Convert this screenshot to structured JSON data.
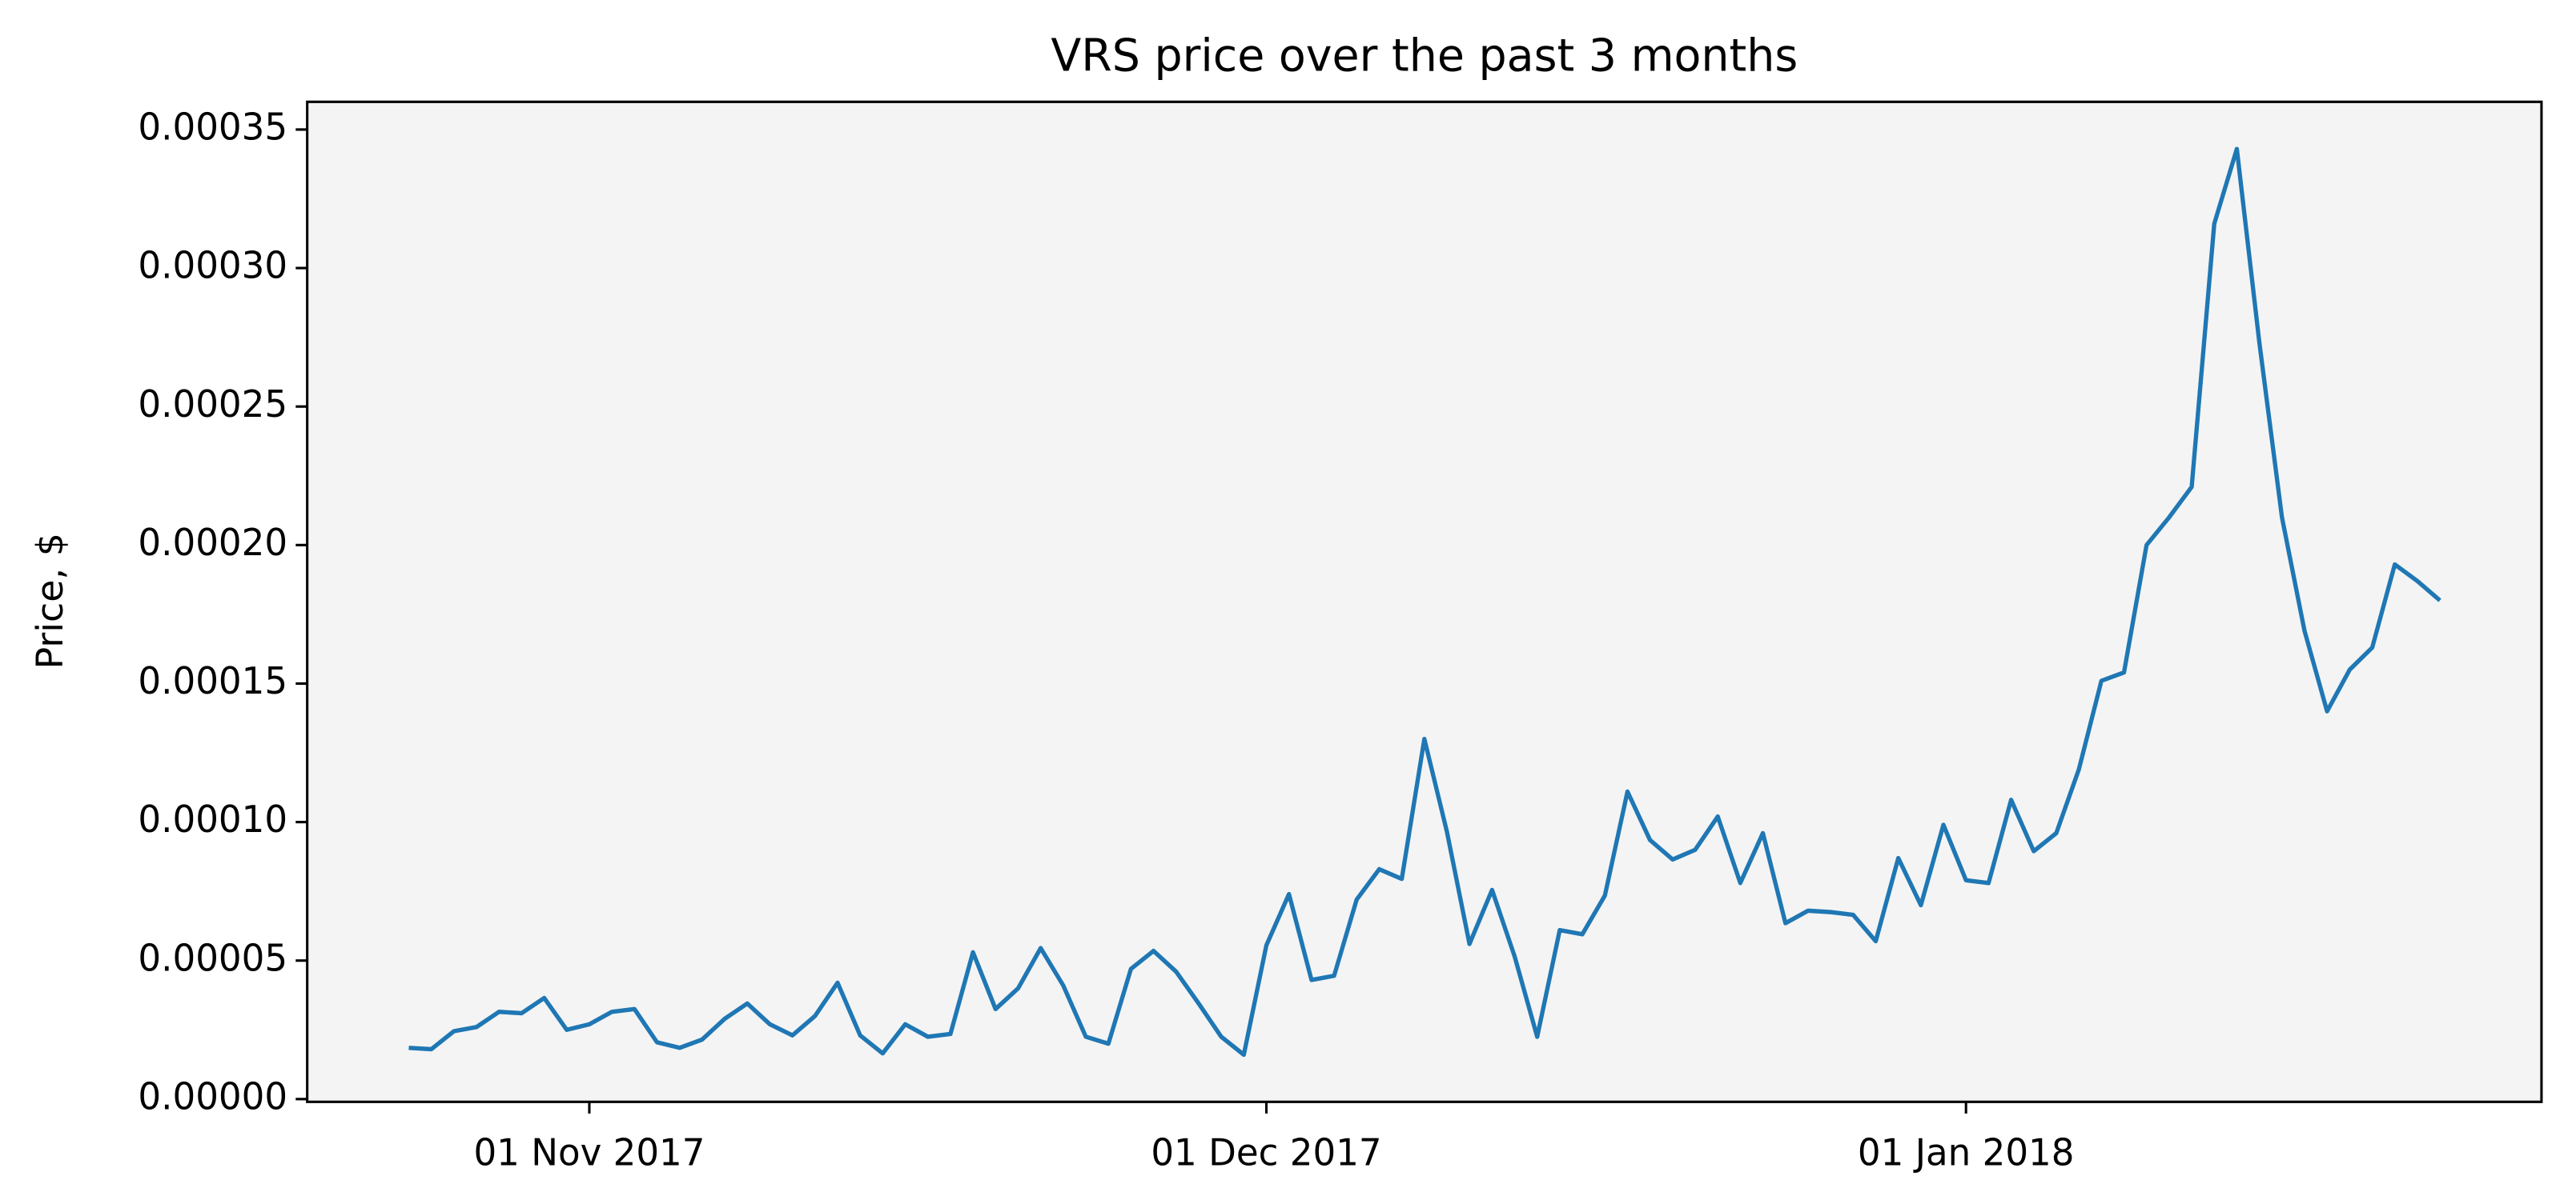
{
  "chart_data": {
    "type": "line",
    "title": "VRS price over the past 3 months",
    "y_label": "Price, $",
    "x": [
      "2017-10-24",
      "2017-10-25",
      "2017-10-26",
      "2017-10-27",
      "2017-10-28",
      "2017-10-29",
      "2017-10-30",
      "2017-10-31",
      "2017-11-01",
      "2017-11-02",
      "2017-11-03",
      "2017-11-04",
      "2017-11-05",
      "2017-11-06",
      "2017-11-07",
      "2017-11-08",
      "2017-11-09",
      "2017-11-10",
      "2017-11-11",
      "2017-11-12",
      "2017-11-13",
      "2017-11-14",
      "2017-11-15",
      "2017-11-16",
      "2017-11-17",
      "2017-11-18",
      "2017-11-19",
      "2017-11-20",
      "2017-11-21",
      "2017-11-22",
      "2017-11-23",
      "2017-11-24",
      "2017-11-25",
      "2017-11-26",
      "2017-11-27",
      "2017-11-28",
      "2017-11-29",
      "2017-11-30",
      "2017-12-01",
      "2017-12-02",
      "2017-12-03",
      "2017-12-04",
      "2017-12-05",
      "2017-12-06",
      "2017-12-07",
      "2017-12-08",
      "2017-12-09",
      "2017-12-10",
      "2017-12-11",
      "2017-12-12",
      "2017-12-13",
      "2017-12-14",
      "2017-12-15",
      "2017-12-16",
      "2017-12-17",
      "2017-12-18",
      "2017-12-19",
      "2017-12-20",
      "2017-12-21",
      "2017-12-22",
      "2017-12-23",
      "2017-12-24",
      "2017-12-25",
      "2017-12-26",
      "2017-12-27",
      "2017-12-28",
      "2017-12-29",
      "2017-12-30",
      "2017-12-31",
      "2018-01-01",
      "2018-01-02",
      "2018-01-03",
      "2018-01-04",
      "2018-01-05",
      "2018-01-06",
      "2018-01-07",
      "2018-01-08",
      "2018-01-09",
      "2018-01-10",
      "2018-01-11",
      "2018-01-12",
      "2018-01-13",
      "2018-01-14",
      "2018-01-15",
      "2018-01-16",
      "2018-01-17",
      "2018-01-18",
      "2018-01-19",
      "2018-01-20",
      "2018-01-21",
      "2018-01-22"
    ],
    "series": [
      {
        "name": "VRS",
        "color": "#1f77b4",
        "values": [
          1.85e-05,
          1.8e-05,
          2.45e-05,
          2.6e-05,
          3.15e-05,
          3.1e-05,
          3.65e-05,
          2.5e-05,
          2.7e-05,
          3.15e-05,
          3.25e-05,
          2.05e-05,
          1.85e-05,
          2.15e-05,
          2.9e-05,
          3.45e-05,
          2.7e-05,
          2.3e-05,
          3e-05,
          4.2e-05,
          2.3e-05,
          1.65e-05,
          2.7e-05,
          2.25e-05,
          2.35e-05,
          5.3e-05,
          3.25e-05,
          4e-05,
          5.45e-05,
          4.1e-05,
          2.25e-05,
          2e-05,
          4.7e-05,
          5.35e-05,
          4.6e-05,
          3.45e-05,
          2.25e-05,
          1.6e-05,
          5.55e-05,
          7.4e-05,
          4.3e-05,
          4.45e-05,
          7.2e-05,
          8.3e-05,
          7.95e-05,
          0.00013,
          9.65e-05,
          5.6e-05,
          7.55e-05,
          5.15e-05,
          2.25e-05,
          6.1e-05,
          5.95e-05,
          7.35e-05,
          0.000111,
          9.35e-05,
          8.65e-05,
          9e-05,
          0.000102,
          7.8e-05,
          9.6e-05,
          6.35e-05,
          6.8e-05,
          6.75e-05,
          6.65e-05,
          5.7e-05,
          8.7e-05,
          7e-05,
          9.9e-05,
          7.9e-05,
          7.8e-05,
          0.000108,
          8.95e-05,
          9.6e-05,
          0.000119,
          0.000151,
          0.000154,
          0.0002,
          0.00021,
          0.000221,
          0.000316,
          0.000343,
          0.000273,
          0.00021,
          0.000169,
          0.00014,
          0.000155,
          0.000163,
          0.000193,
          0.000187,
          0.00018
        ]
      }
    ],
    "xlim": [
      "2017-10-19T12:00",
      "2018-01-26T12:00"
    ],
    "xticks": [
      {
        "value": "2017-11-01",
        "label": "01 Nov 2017"
      },
      {
        "value": "2017-12-01",
        "label": "01 Dec 2017"
      },
      {
        "value": "2018-01-01",
        "label": "01 Jan 2018"
      }
    ],
    "ylim": [
      -1e-06,
      0.00036
    ],
    "yticks": [
      {
        "value": 0,
        "label": "0.00000"
      },
      {
        "value": 5e-05,
        "label": "0.00005"
      },
      {
        "value": 0.0001,
        "label": "0.00010"
      },
      {
        "value": 0.00015,
        "label": "0.00015"
      },
      {
        "value": 0.0002,
        "label": "0.00020"
      },
      {
        "value": 0.00025,
        "label": "0.00025"
      },
      {
        "value": 0.0003,
        "label": "0.00030"
      },
      {
        "value": 0.00035,
        "label": "0.00035"
      }
    ],
    "grid": false,
    "background": "#f4f4f4"
  }
}
